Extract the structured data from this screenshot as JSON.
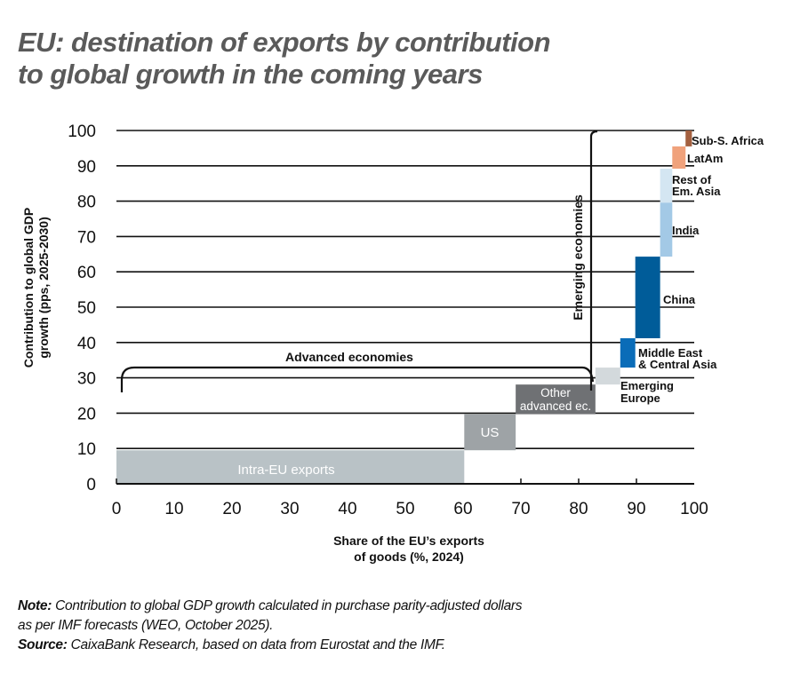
{
  "title": {
    "line1": "EU: destination of exports by contribution",
    "line2": "to global growth in the coming years"
  },
  "axes": {
    "ylabel_line1": "Contribution to global GDP",
    "ylabel_line2": "growth (pps, 2025-2030)",
    "xlabel_line1": "Share of the EU’s exports",
    "xlabel_line2": "of goods (%, 2024)",
    "xticks": [
      "0",
      "10",
      "20",
      "30",
      "40",
      "50",
      "60",
      "70",
      "80",
      "90",
      "100"
    ],
    "yticks": [
      "0",
      "10",
      "20",
      "30",
      "40",
      "50",
      "60",
      "70",
      "80",
      "90",
      "100"
    ]
  },
  "brackets": {
    "advanced": "Advanced economies",
    "emerging": "Emerging economies"
  },
  "labels": {
    "intra_eu": "Intra-EU exports",
    "us": "US",
    "other_adv_1": "Other",
    "other_adv_2": "advanced ec.",
    "em_europe_1": "Emerging",
    "em_europe_2": "Europe",
    "mideast_1": "Middle East",
    "mideast_2": "& Central Asia",
    "china": "China",
    "india": "India",
    "rest_asia_1": "Rest of",
    "rest_asia_2": "Em. Asia",
    "latam": "LatAm",
    "ssa": "Sub-S. Africa"
  },
  "notes": {
    "note_label": "Note:",
    "note_text": " Contribution to global GDP growth calculated in purchase parity-adjusted dollars",
    "note_text2": "as per IMF forecasts (WEO, October 2025).",
    "source_label": "Source:",
    "source_text": " CaixaBank Research, based on data from Eurostat and the IMF."
  },
  "chart_data": {
    "type": "bar",
    "subtype": "variable-width step (Marimekko-style) cumulative chart",
    "title": "EU: destination of exports by contribution to global growth in the coming years",
    "xlabel": "Share of the EU’s exports of goods (%, 2024)",
    "ylabel": "Contribution to global GDP growth (pps, 2025-2030)",
    "xlim": [
      0,
      100
    ],
    "ylim": [
      0,
      100
    ],
    "grid": "horizontal",
    "segments": [
      {
        "name": "Intra-EU exports",
        "x0": 0,
        "x1": 60.2,
        "y0": 0,
        "y1": 9.5,
        "group": "Advanced economies",
        "color": "#b9c2c6"
      },
      {
        "name": "US",
        "x0": 60.2,
        "x1": 69.1,
        "y0": 9.5,
        "y1": 19.7,
        "group": "Advanced economies",
        "color": "#9ea3a6"
      },
      {
        "name": "Other advanced ec.",
        "x0": 69.1,
        "x1": 82.9,
        "y0": 19.7,
        "y1": 28.1,
        "group": "Advanced economies",
        "color": "#6f7174"
      },
      {
        "name": "Emerging Europe",
        "x0": 82.9,
        "x1": 87.2,
        "y0": 28.1,
        "y1": 32.9,
        "group": "Emerging economies",
        "color": "#d3d9dc"
      },
      {
        "name": "Middle East & Central Asia",
        "x0": 87.2,
        "x1": 89.8,
        "y0": 32.9,
        "y1": 41.2,
        "group": "Emerging economies",
        "color": "#0a6cb8"
      },
      {
        "name": "China",
        "x0": 89.8,
        "x1": 94.1,
        "y0": 41.2,
        "y1": 64.3,
        "group": "Emerging economies",
        "color": "#005c99"
      },
      {
        "name": "India",
        "x0": 94.1,
        "x1": 96.2,
        "y0": 64.3,
        "y1": 79.6,
        "group": "Emerging economies",
        "color": "#a3c9e6"
      },
      {
        "name": "Rest of Em. Asia",
        "x0": 94.1,
        "x1": 96.2,
        "y0": 79.6,
        "y1": 89.2,
        "group": "Emerging economies",
        "color": "#d4e6f2"
      },
      {
        "name": "LatAm",
        "x0": 96.2,
        "x1": 98.5,
        "y0": 89.2,
        "y1": 95.5,
        "group": "Emerging economies",
        "color": "#f0a27c"
      },
      {
        "name": "Sub-S. Africa",
        "x0": 98.5,
        "x1": 99.6,
        "y0": 95.5,
        "y1": 100,
        "group": "Emerging economies",
        "color": "#a4603f"
      }
    ],
    "annotations": [
      "Advanced economies",
      "Emerging economies"
    ]
  }
}
